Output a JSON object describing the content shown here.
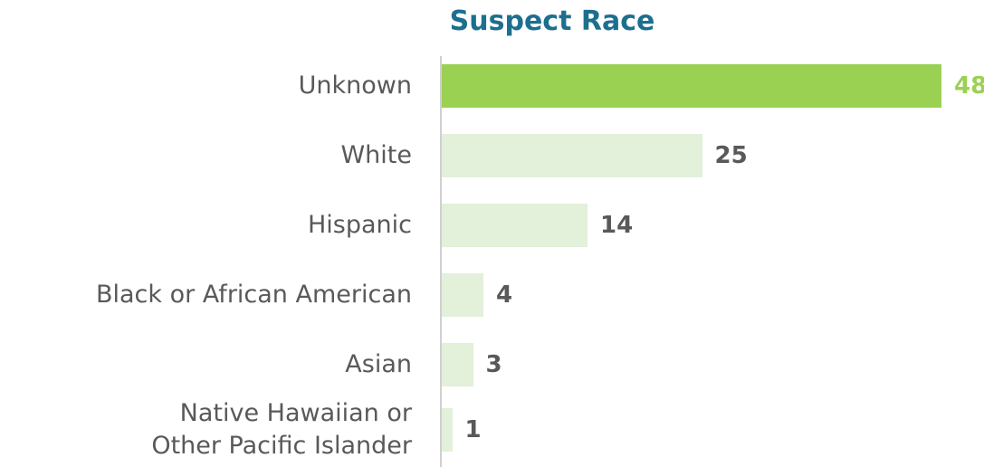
{
  "chart_data": {
    "type": "bar",
    "orientation": "horizontal",
    "title": "Suspect Race",
    "categories": [
      "Unknown",
      "White",
      "Hispanic",
      "Black or African American",
      "Asian",
      "Native Hawaiian or\nOther Pacific Islander"
    ],
    "values": [
      48,
      25,
      14,
      4,
      3,
      1
    ],
    "colors": [
      "#9bd153",
      "#e3f0da",
      "#e3f0da",
      "#e3f0da",
      "#e3f0da",
      "#e3f0da"
    ],
    "label_colors": [
      "#9bd153",
      "#595959",
      "#595959",
      "#595959",
      "#595959",
      "#595959"
    ]
  }
}
